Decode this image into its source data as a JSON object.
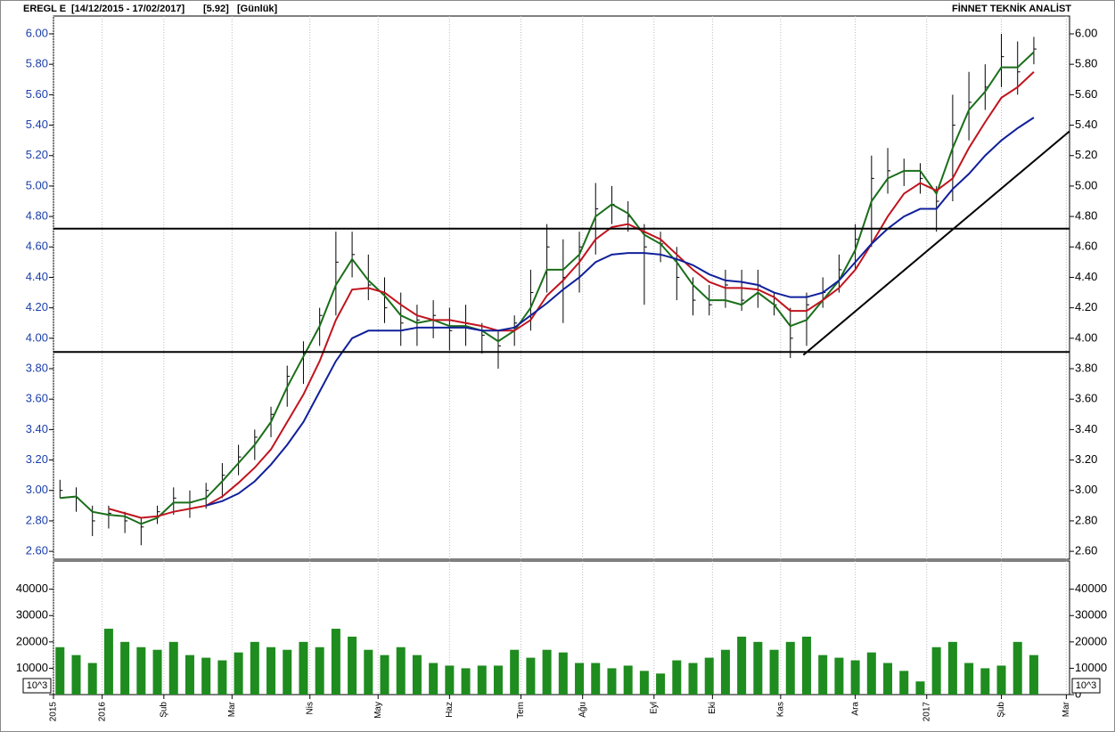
{
  "header": {
    "symbol": "EREGL E",
    "range": "[14/12/2015 - 17/02/2017]",
    "last": "[5.92]",
    "period": "[Günlük]",
    "vendor": "FİNNET TEKNİK ANALİST"
  },
  "chart_data": [
    {
      "type": "ohlc",
      "color": "#000000",
      "x": [
        2,
        7,
        12,
        17,
        22,
        27,
        32,
        37,
        42,
        47,
        52,
        57,
        62,
        67,
        72,
        77,
        82,
        87,
        92,
        97,
        102,
        107,
        112,
        117,
        122,
        127,
        132,
        137,
        142,
        147,
        152,
        157,
        162,
        167,
        172,
        177,
        182,
        187,
        192,
        197,
        202,
        207,
        212,
        217,
        222,
        227,
        232,
        237,
        242,
        247,
        252,
        257,
        262,
        267,
        272,
        277,
        282,
        287,
        292,
        297,
        302
      ],
      "high": [
        3.07,
        3.02,
        2.9,
        2.9,
        2.86,
        2.82,
        2.9,
        3.02,
        3.0,
        3.05,
        3.18,
        3.3,
        3.4,
        3.55,
        3.82,
        3.98,
        4.2,
        4.7,
        4.7,
        4.55,
        4.4,
        4.3,
        4.22,
        4.25,
        4.2,
        4.22,
        4.1,
        4.05,
        4.15,
        4.45,
        4.75,
        4.65,
        4.7,
        5.02,
        5.0,
        4.9,
        4.75,
        4.7,
        4.6,
        4.4,
        4.35,
        4.45,
        4.45,
        4.45,
        4.3,
        4.2,
        4.3,
        4.4,
        4.55,
        4.75,
        5.2,
        5.25,
        5.18,
        5.15,
        5.0,
        5.6,
        5.75,
        5.8,
        6.0,
        5.95,
        5.98
      ],
      "low": [
        2.95,
        2.86,
        2.7,
        2.75,
        2.72,
        2.64,
        2.78,
        2.84,
        2.82,
        2.88,
        2.95,
        3.1,
        3.2,
        3.35,
        3.55,
        3.7,
        3.95,
        4.15,
        4.4,
        4.25,
        4.1,
        3.95,
        3.95,
        4.0,
        3.92,
        3.95,
        3.9,
        3.8,
        3.95,
        4.05,
        4.3,
        4.1,
        4.3,
        4.55,
        4.75,
        4.7,
        4.22,
        4.5,
        4.25,
        4.15,
        4.15,
        4.2,
        4.18,
        4.2,
        4.15,
        3.87,
        3.95,
        4.2,
        4.3,
        4.45,
        4.6,
        4.95,
        5.0,
        4.95,
        4.7,
        4.9,
        5.3,
        5.5,
        5.65,
        5.6,
        5.8
      ],
      "close": [
        3.0,
        2.95,
        2.8,
        2.85,
        2.8,
        2.76,
        2.86,
        2.95,
        2.92,
        3.0,
        3.1,
        3.22,
        3.35,
        3.5,
        3.75,
        3.9,
        4.15,
        4.5,
        4.55,
        4.35,
        4.2,
        4.1,
        4.12,
        4.15,
        4.05,
        4.1,
        4.02,
        3.95,
        4.1,
        4.3,
        4.6,
        4.4,
        4.6,
        4.85,
        4.88,
        4.8,
        4.6,
        4.62,
        4.4,
        4.25,
        4.22,
        4.35,
        4.25,
        4.35,
        4.22,
        4.0,
        4.22,
        4.3,
        4.45,
        4.65,
        5.05,
        5.1,
        5.1,
        5.05,
        4.9,
        5.4,
        5.55,
        5.65,
        5.85,
        5.75,
        5.9
      ],
      "series": [
        {
          "color": "#1a6e1a",
          "values": [
            2.95,
            2.96,
            2.86,
            2.84,
            2.83,
            2.78,
            2.82,
            2.92,
            2.92,
            2.95,
            3.06,
            3.18,
            3.3,
            3.45,
            3.68,
            3.88,
            4.08,
            4.35,
            4.52,
            4.38,
            4.28,
            4.15,
            4.1,
            4.12,
            4.08,
            4.08,
            4.05,
            3.98,
            4.05,
            4.2,
            4.45,
            4.45,
            4.55,
            4.8,
            4.88,
            4.82,
            4.68,
            4.62,
            4.5,
            4.35,
            4.25,
            4.25,
            4.22,
            4.3,
            4.22,
            4.08,
            4.12,
            4.25,
            4.38,
            4.58,
            4.9,
            5.05,
            5.1,
            5.1,
            4.95,
            5.25,
            5.5,
            5.62,
            5.78,
            5.78,
            5.88
          ]
        },
        {
          "color": "#c0141e",
          "values": [
            null,
            null,
            null,
            2.88,
            2.85,
            2.82,
            2.83,
            2.86,
            2.88,
            2.9,
            2.96,
            3.05,
            3.15,
            3.27,
            3.45,
            3.63,
            3.85,
            4.12,
            4.32,
            4.33,
            4.3,
            4.22,
            4.15,
            4.12,
            4.12,
            4.1,
            4.08,
            4.05,
            4.05,
            4.12,
            4.28,
            4.38,
            4.5,
            4.65,
            4.73,
            4.75,
            4.7,
            4.65,
            4.55,
            4.45,
            4.37,
            4.33,
            4.33,
            4.32,
            4.27,
            4.18,
            4.18,
            4.25,
            4.33,
            4.45,
            4.62,
            4.8,
            4.95,
            5.02,
            4.97,
            5.05,
            5.25,
            5.42,
            5.58,
            5.65,
            5.75
          ]
        },
        {
          "color": "#10209a",
          "values": [
            null,
            null,
            null,
            null,
            null,
            null,
            null,
            null,
            null,
            2.9,
            2.93,
            2.98,
            3.06,
            3.17,
            3.3,
            3.45,
            3.65,
            3.85,
            4.0,
            4.05,
            4.05,
            4.05,
            4.07,
            4.07,
            4.07,
            4.07,
            4.05,
            4.05,
            4.07,
            4.15,
            4.23,
            4.32,
            4.4,
            4.5,
            4.55,
            4.56,
            4.56,
            4.55,
            4.52,
            4.48,
            4.42,
            4.38,
            4.37,
            4.35,
            4.3,
            4.27,
            4.27,
            4.3,
            4.38,
            4.5,
            4.62,
            4.72,
            4.8,
            4.85,
            4.85,
            4.98,
            5.08,
            5.2,
            5.3,
            5.38,
            5.45
          ]
        }
      ],
      "hlines": [
        4.72,
        3.91
      ],
      "trendline": {
        "x": [
          231,
          313
        ],
        "y": [
          3.89,
          5.36
        ]
      },
      "xlim": [
        0,
        313
      ],
      "ylim": [
        2.548,
        6.117
      ],
      "yticks": [
        {
          "value": 2.6,
          "label": "2.60"
        },
        {
          "value": 2.8,
          "label": "2.80"
        },
        {
          "value": 3.0,
          "label": "3.00"
        },
        {
          "value": 3.2,
          "label": "3.20"
        },
        {
          "value": 3.4,
          "label": "3.40"
        },
        {
          "value": 3.6,
          "label": "3.60"
        },
        {
          "value": 3.8,
          "label": "3.80"
        },
        {
          "value": 4.0,
          "label": "4.00"
        },
        {
          "value": 4.2,
          "label": "4.20"
        },
        {
          "value": 4.4,
          "label": "4.40"
        },
        {
          "value": 4.6,
          "label": "4.60"
        },
        {
          "value": 4.8,
          "label": "4.80"
        },
        {
          "value": 5.0,
          "label": "5.00"
        },
        {
          "value": 5.2,
          "label": "5.20"
        },
        {
          "value": 5.4,
          "label": "5.40"
        },
        {
          "value": 5.6,
          "label": "5.60"
        },
        {
          "value": 5.8,
          "label": "5.80"
        },
        {
          "value": 6.0,
          "label": "6.00"
        }
      ]
    },
    {
      "type": "bar",
      "color": "#1e8c1e",
      "unit_label": "10^3",
      "grid": true,
      "x": [
        2,
        7,
        12,
        17,
        22,
        27,
        32,
        37,
        42,
        47,
        52,
        57,
        62,
        67,
        72,
        77,
        82,
        87,
        92,
        97,
        102,
        107,
        112,
        117,
        122,
        127,
        132,
        137,
        142,
        147,
        152,
        157,
        162,
        167,
        172,
        177,
        182,
        187,
        192,
        197,
        202,
        207,
        212,
        217,
        222,
        227,
        232,
        237,
        242,
        247,
        252,
        257,
        262,
        267,
        272,
        277,
        282,
        287,
        292,
        297,
        302
      ],
      "values": [
        18000,
        15000,
        12000,
        25000,
        20000,
        18000,
        17000,
        20000,
        15000,
        14000,
        13000,
        16000,
        20000,
        18000,
        17000,
        20000,
        18000,
        25000,
        22000,
        17000,
        15000,
        18000,
        15000,
        12000,
        11000,
        10000,
        11000,
        11000,
        17000,
        14000,
        17000,
        16000,
        12000,
        12000,
        10000,
        11000,
        9000,
        8000,
        13000,
        12000,
        14000,
        17000,
        22000,
        20000,
        17000,
        20000,
        22000,
        15000,
        14000,
        13000,
        16000,
        12000,
        9000,
        5000,
        18000,
        20000,
        12000,
        10000,
        11000,
        20000,
        15000
      ],
      "xlim": [
        0,
        313
      ],
      "ylim": [
        0,
        50700
      ],
      "yticks": [
        0,
        10000,
        20000,
        30000,
        40000
      ],
      "xticks": [
        {
          "value": 0,
          "label": "2015"
        },
        {
          "value": 15,
          "label": "2016"
        },
        {
          "value": 34,
          "label": "Şub"
        },
        {
          "value": 55,
          "label": "Mar"
        },
        {
          "value": 79,
          "label": "Nis"
        },
        {
          "value": 100,
          "label": "May"
        },
        {
          "value": 122,
          "label": "Haz"
        },
        {
          "value": 144,
          "label": "Tem"
        },
        {
          "value": 163,
          "label": "Ağu"
        },
        {
          "value": 185,
          "label": "Eyl"
        },
        {
          "value": 203,
          "label": "Eki"
        },
        {
          "value": 224,
          "label": "Kas"
        },
        {
          "value": 247,
          "label": "Ara"
        },
        {
          "value": 269,
          "label": "2017"
        },
        {
          "value": 292,
          "label": "Şub"
        },
        {
          "value": 312,
          "label": "Mar"
        }
      ]
    }
  ]
}
